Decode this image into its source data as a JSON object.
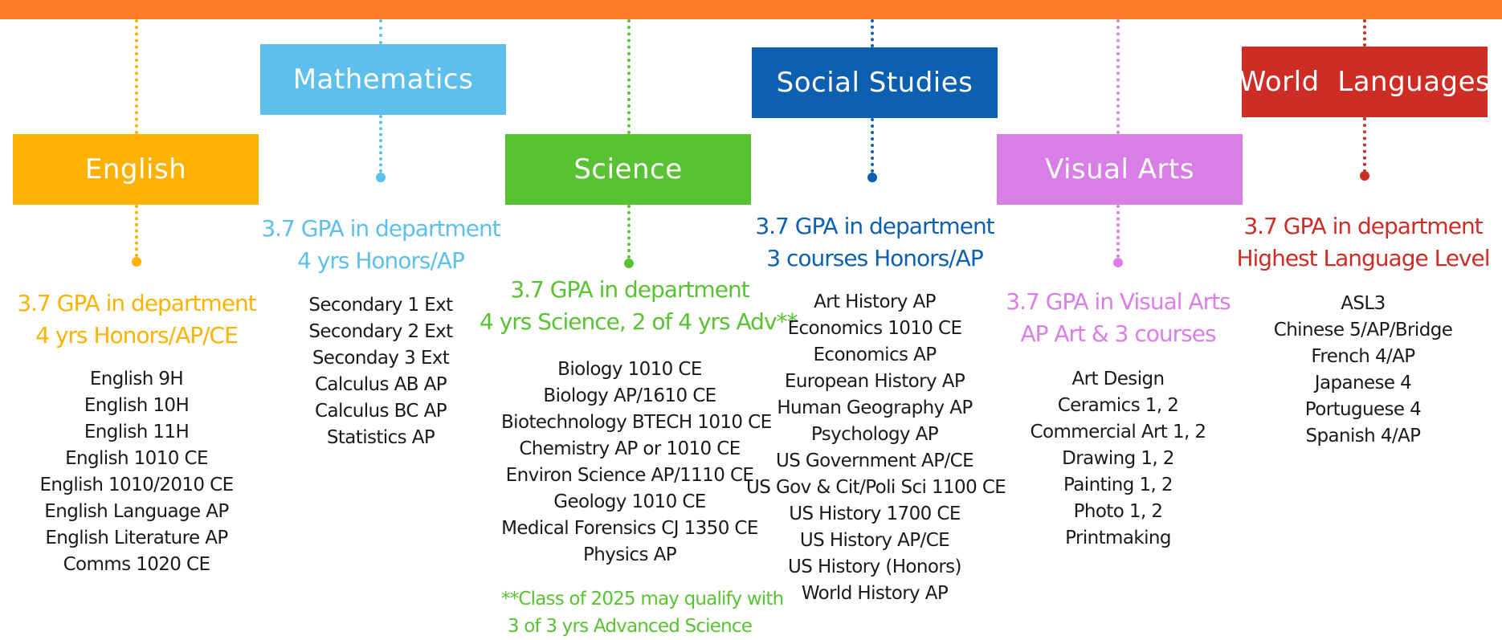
{
  "colors": {
    "topbar": "#fd7b27",
    "english": "#fdb202",
    "math": "#5cbfec",
    "science": "#58c232",
    "social": "#0d60b0",
    "visual": "#d97ee7",
    "languages": "#cd2d25"
  },
  "departments": [
    {
      "name": "English",
      "req1": "3.7 GPA in department",
      "req2": "4 yrs Honors/AP/CE",
      "courses": [
        "English 9H",
        "English 10H",
        "English 11H",
        "English 1010 CE",
        "English 1010/2010 CE",
        "English Language AP",
        "English Literature AP",
        "Comms 1020 CE"
      ]
    },
    {
      "name": "Mathematics",
      "req1": "3.7 GPA in department",
      "req2": "4 yrs Honors/AP",
      "courses": [
        "Secondary 1 Ext",
        "Secondary 2 Ext",
        "Seconday 3 Ext",
        "Calculus AB AP",
        "Calculus BC AP",
        "Statistics AP"
      ]
    },
    {
      "name": "Science",
      "req1": "3.7 GPA in department",
      "req2": "4 yrs Science, 2 of 4 yrs Adv**",
      "courses": [
        "Biology 1010 CE",
        "Biology AP/1610 CE",
        "Biotechnology BTECH 1010 CE",
        "Chemistry AP or 1010 CE",
        "Environ Science AP/1110 CE",
        "Geology 1010 CE",
        "Medical Forensics CJ 1350 CE",
        "Physics AP"
      ],
      "note1": "**Class of 2025 may qualify with",
      "note2": "3 of 3 yrs Advanced Science"
    },
    {
      "name": "Social Studies",
      "req1": "3.7 GPA in department",
      "req2": "3 courses Honors/AP",
      "courses": [
        "Art History AP",
        "Economics 1010 CE",
        "Economics AP",
        "European History AP",
        "Human Geography AP",
        "Psychology AP",
        "US Government AP/CE",
        "US Gov & Cit/Poli Sci 1100 CE",
        "US History 1700 CE",
        "US History AP/CE",
        "US History (Honors)",
        "World History AP"
      ]
    },
    {
      "name": "Visual Arts",
      "req1": "3.7 GPA in Visual Arts",
      "req2": "AP Art & 3 courses",
      "courses": [
        "Art Design",
        "Ceramics 1, 2",
        "Commercial Art 1, 2",
        "Drawing 1, 2",
        "Painting 1, 2",
        "Photo 1, 2",
        "Printmaking"
      ]
    },
    {
      "name": "World  Languages",
      "req1": "3.7 GPA in department",
      "req2": "Highest Language Level",
      "courses": [
        "ASL3",
        "Chinese 5/AP/Bridge",
        "French 4/AP",
        "Japanese 4",
        "Portuguese 4",
        "Spanish 4/AP"
      ]
    }
  ]
}
